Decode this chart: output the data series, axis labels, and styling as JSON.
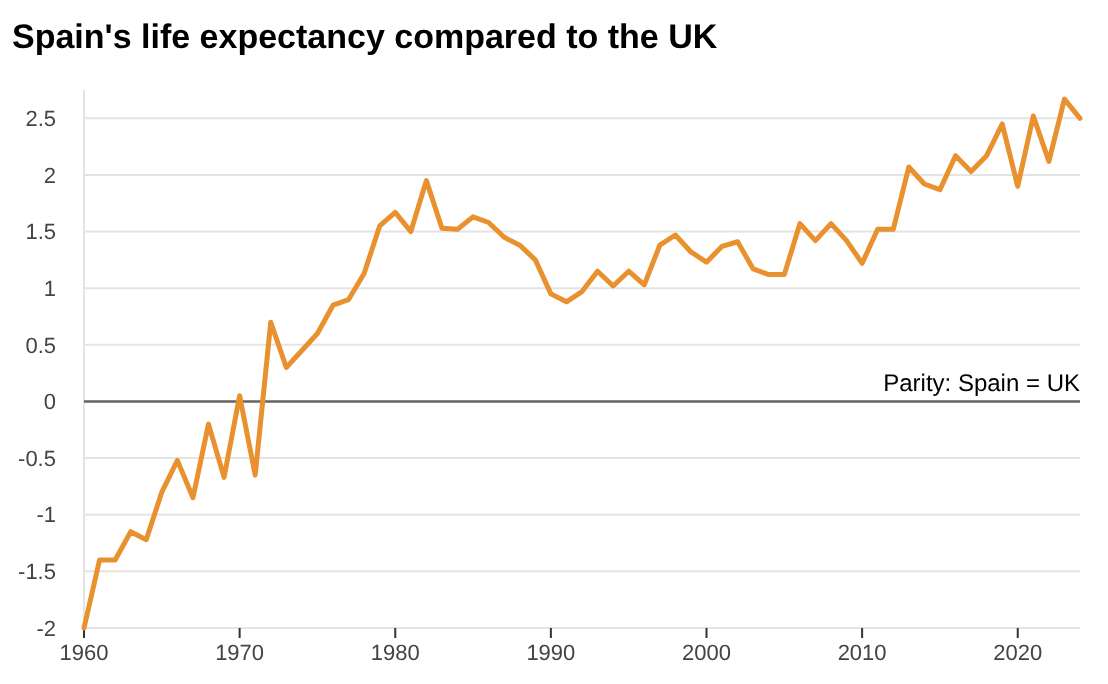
{
  "chart_data": {
    "type": "line",
    "title": "Spain's life expectancy compared to the UK",
    "x": [
      1960,
      1961,
      1962,
      1963,
      1964,
      1965,
      1966,
      1967,
      1968,
      1969,
      1970,
      1971,
      1972,
      1973,
      1974,
      1975,
      1976,
      1977,
      1978,
      1979,
      1980,
      1981,
      1982,
      1983,
      1984,
      1985,
      1986,
      1987,
      1988,
      1989,
      1990,
      1991,
      1992,
      1993,
      1994,
      1995,
      1996,
      1997,
      1998,
      1999,
      2000,
      2001,
      2002,
      2003,
      2004,
      2005,
      2006,
      2007,
      2008,
      2009,
      2010,
      2011,
      2012,
      2013,
      2014,
      2015,
      2016,
      2017,
      2018,
      2019,
      2020,
      2021,
      2022,
      2023,
      2024
    ],
    "series": [
      {
        "color": "#e8912e",
        "values": [
          -2,
          -1.4,
          -1.4,
          -1.15,
          -1.22,
          -0.8,
          -0.52,
          -0.85,
          -0.2,
          -0.67,
          0.05,
          -0.65,
          0.7,
          0.3,
          0.45,
          0.6,
          0.85,
          0.9,
          1.13,
          1.55,
          1.67,
          1.5,
          1.95,
          1.53,
          1.52,
          1.63,
          1.58,
          1.45,
          1.38,
          1.25,
          0.95,
          0.88,
          0.97,
          1.15,
          1.02,
          1.15,
          1.03,
          1.38,
          1.47,
          1.32,
          1.23,
          1.37,
          1.41,
          1.17,
          1.12,
          1.12,
          1.57,
          1.42,
          1.57,
          1.42,
          1.22,
          1.52,
          1.52,
          2.07,
          1.92,
          1.87,
          2.17,
          2.03,
          2.17,
          2.45,
          1.9,
          2.52,
          2.12,
          2.67,
          2.5
        ]
      }
    ],
    "xlim": [
      1960,
      2024
    ],
    "xticks": [
      1960,
      1970,
      1980,
      1990,
      2000,
      2010,
      2020
    ],
    "ylim": [
      -2,
      2.75
    ],
    "yticks": [
      -2,
      -1.5,
      -1,
      -0.5,
      0,
      0.5,
      1,
      1.5,
      2,
      2.5
    ],
    "grid": "y",
    "marker": "none",
    "line_style": "solid",
    "ref_lines": [
      {
        "axis": "y",
        "value": 0,
        "label": "Parity: Spain = UK",
        "color": "#666666"
      }
    ]
  }
}
